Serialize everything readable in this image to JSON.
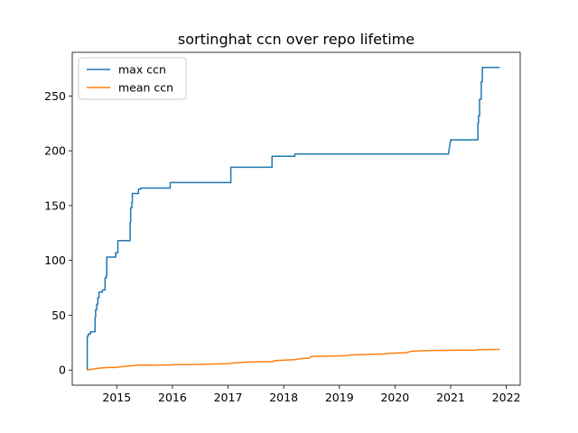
{
  "chart_data": {
    "type": "line",
    "title": "sortinghat ccn over repo lifetime",
    "xlabel": "",
    "ylabel": "",
    "xlim": [
      2014.2,
      2022.25
    ],
    "ylim": [
      -13.8,
      289.8
    ],
    "x_ticks": [
      2015,
      2016,
      2017,
      2018,
      2019,
      2020,
      2021,
      2022
    ],
    "y_ticks": [
      0,
      50,
      100,
      150,
      200,
      250
    ],
    "grid": false,
    "legend_position": "top-left",
    "series": [
      {
        "name": "max ccn",
        "color": "#1f77b4",
        "step": true,
        "points": [
          [
            2014.47,
            0
          ],
          [
            2014.47,
            31
          ],
          [
            2014.49,
            31
          ],
          [
            2014.49,
            33
          ],
          [
            2014.53,
            33
          ],
          [
            2014.53,
            35
          ],
          [
            2014.61,
            35
          ],
          [
            2014.61,
            48
          ],
          [
            2014.62,
            48
          ],
          [
            2014.62,
            55
          ],
          [
            2014.64,
            55
          ],
          [
            2014.64,
            60
          ],
          [
            2014.66,
            60
          ],
          [
            2014.66,
            66
          ],
          [
            2014.68,
            66
          ],
          [
            2014.68,
            71
          ],
          [
            2014.74,
            71
          ],
          [
            2014.74,
            73
          ],
          [
            2014.79,
            73
          ],
          [
            2014.79,
            84
          ],
          [
            2014.81,
            84
          ],
          [
            2014.81,
            86
          ],
          [
            2014.82,
            86
          ],
          [
            2014.82,
            103
          ],
          [
            2014.98,
            103
          ],
          [
            2014.98,
            107
          ],
          [
            2015.02,
            107
          ],
          [
            2015.02,
            118
          ],
          [
            2015.24,
            118
          ],
          [
            2015.24,
            135
          ],
          [
            2015.25,
            135
          ],
          [
            2015.25,
            148
          ],
          [
            2015.27,
            148
          ],
          [
            2015.27,
            153
          ],
          [
            2015.28,
            153
          ],
          [
            2015.28,
            161
          ],
          [
            2015.39,
            161
          ],
          [
            2015.39,
            165
          ],
          [
            2015.43,
            165
          ],
          [
            2015.43,
            166
          ],
          [
            2015.96,
            166
          ],
          [
            2015.96,
            171
          ],
          [
            2017.05,
            171
          ],
          [
            2017.05,
            185
          ],
          [
            2017.79,
            185
          ],
          [
            2017.79,
            195
          ],
          [
            2018.2,
            195
          ],
          [
            2018.2,
            197
          ],
          [
            2020.96,
            197
          ],
          [
            2021.0,
            210
          ],
          [
            2021.49,
            210
          ],
          [
            2021.49,
            225
          ],
          [
            2021.5,
            225
          ],
          [
            2021.5,
            232
          ],
          [
            2021.52,
            232
          ],
          [
            2021.52,
            247
          ],
          [
            2021.55,
            247
          ],
          [
            2021.55,
            263
          ],
          [
            2021.57,
            263
          ],
          [
            2021.57,
            276
          ],
          [
            2021.88,
            276
          ]
        ]
      },
      {
        "name": "mean ccn",
        "color": "#ff7f0e",
        "step": true,
        "points": [
          [
            2014.47,
            0
          ],
          [
            2014.55,
            0.8
          ],
          [
            2014.7,
            1.8
          ],
          [
            2014.85,
            2.3
          ],
          [
            2015.0,
            2.4
          ],
          [
            2015.1,
            3.2
          ],
          [
            2015.25,
            3.8
          ],
          [
            2015.4,
            4.5
          ],
          [
            2015.6,
            4.5
          ],
          [
            2015.9,
            4.6
          ],
          [
            2016.1,
            5.0
          ],
          [
            2016.5,
            5.1
          ],
          [
            2016.6,
            5.3
          ],
          [
            2017.0,
            5.8
          ],
          [
            2017.1,
            6.5
          ],
          [
            2017.3,
            7.2
          ],
          [
            2017.5,
            7.5
          ],
          [
            2017.8,
            7.8
          ],
          [
            2017.85,
            8.6
          ],
          [
            2018.0,
            9.0
          ],
          [
            2018.2,
            9.4
          ],
          [
            2018.3,
            10.5
          ],
          [
            2018.45,
            10.8
          ],
          [
            2018.5,
            12.4
          ],
          [
            2018.75,
            12.6
          ],
          [
            2019.1,
            13.0
          ],
          [
            2019.2,
            13.8
          ],
          [
            2019.5,
            14.3
          ],
          [
            2019.8,
            14.7
          ],
          [
            2019.9,
            15.3
          ],
          [
            2020.2,
            15.8
          ],
          [
            2020.3,
            17.2
          ],
          [
            2020.6,
            17.8
          ],
          [
            2020.9,
            17.9
          ],
          [
            2021.2,
            18.1
          ],
          [
            2021.45,
            18.2
          ],
          [
            2021.5,
            18.6
          ],
          [
            2021.88,
            18.8
          ]
        ]
      }
    ]
  }
}
